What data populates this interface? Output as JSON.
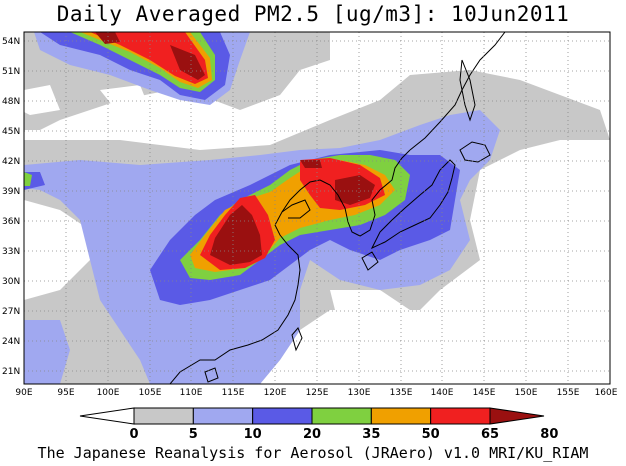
{
  "title": "Daily Averaged PM2.5 [ug/m3]: 10Jun2011",
  "footer": "The Japanese Reanalysis for Aerosol (JRAero) v1.0 MRI/KU_RIAM",
  "map": {
    "lon_range": [
      90,
      160
    ],
    "lat_range": [
      20,
      55
    ],
    "x_ticks": [
      "90E",
      "95E",
      "100E",
      "105E",
      "110E",
      "115E",
      "120E",
      "125E",
      "130E",
      "135E",
      "140E",
      "145E",
      "150E",
      "155E",
      "160E"
    ],
    "y_ticks": [
      "21N",
      "24N",
      "27N",
      "30N",
      "33N",
      "36N",
      "39N",
      "42N",
      "45N",
      "48N",
      "51N",
      "54N"
    ],
    "grid": "dotted"
  },
  "colorbar": {
    "labels": [
      "0",
      "5",
      "10",
      "20",
      "35",
      "50",
      "65",
      "80"
    ],
    "colors": [
      "#ffffff",
      "#c8c8c8",
      "#a0a8f0",
      "#5a5ae6",
      "#7fd040",
      "#f0a000",
      "#f02020",
      "#9a1010"
    ]
  },
  "levels": {
    "gray": "#c8c8c8",
    "lightblue": "#a0a8f0",
    "blue": "#5a5ae6",
    "green": "#7fd040",
    "orange": "#f0a000",
    "red": "#f02020",
    "darkred": "#9a1010"
  }
}
